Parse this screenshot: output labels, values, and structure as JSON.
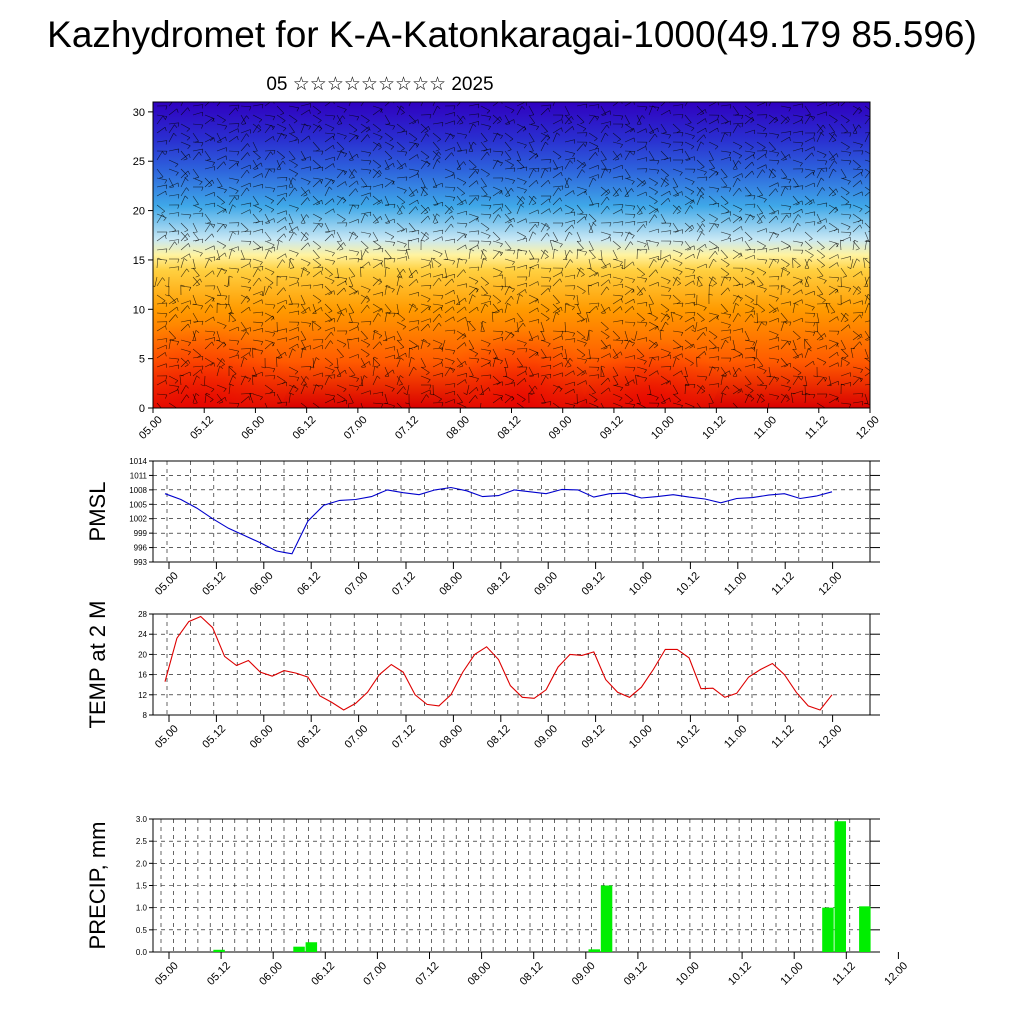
{
  "title": "Kazhydromet for K-A-Katonkaragai-1000(49.179 85.596)",
  "subtitle": "05 ☆☆☆☆☆☆☆☆☆ 2025",
  "time_labels": [
    "05.00",
    "05.12",
    "06.00",
    "06.12",
    "07.00",
    "07.12",
    "08.00",
    "08.12",
    "09.00",
    "09.12",
    "10.00",
    "10.12",
    "11.00",
    "11.12",
    "12.00"
  ],
  "chart_data": [
    {
      "type": "heatmap",
      "title": "",
      "x_categories": [
        "05.00",
        "05.12",
        "06.00",
        "06.12",
        "07.00",
        "07.12",
        "08.00",
        "08.12",
        "09.00",
        "09.12",
        "10.00",
        "10.12",
        "11.00",
        "11.12",
        "12.00"
      ],
      "y_ticks": [
        0,
        5,
        10,
        15,
        20,
        25,
        30
      ],
      "ylim": [
        0,
        31
      ],
      "colors": [
        "#e10000",
        "#ff6a00",
        "#ffb000",
        "#ffe870",
        "#a9dcf0",
        "#3aa6e8",
        "#2a4fd8",
        "#2a10c8"
      ],
      "overlay": "wind barbs"
    },
    {
      "type": "line",
      "ylabel": "PMSL",
      "y_ticks": [
        993,
        996,
        999,
        1002,
        1005,
        1008,
        1011,
        1014
      ],
      "ylim": [
        993,
        1014
      ],
      "color": "#0000cc",
      "x": [
        0,
        2,
        4,
        6,
        8,
        10,
        12,
        14,
        15,
        16,
        18,
        20,
        22,
        24,
        26,
        28,
        30,
        32,
        34,
        36,
        38,
        40,
        42,
        44,
        46,
        48,
        50,
        52,
        54,
        56,
        58,
        60,
        62,
        64,
        66,
        68,
        70,
        72,
        74,
        76,
        78,
        80,
        82,
        84
      ],
      "values": [
        1007.2,
        1006,
        1004.2,
        1002,
        1000,
        998.5,
        997,
        995.3,
        995,
        994.7,
        1001.5,
        1004.8,
        1005.8,
        1006,
        1006.6,
        1008,
        1007.4,
        1007,
        1008,
        1008.5,
        1007.8,
        1006.6,
        1006.8,
        1008,
        1007.6,
        1007.2,
        1008.1,
        1008,
        1006.5,
        1007.2,
        1007.3,
        1006.3,
        1006.6,
        1007,
        1006.5,
        1006.1,
        1005.3,
        1006.2,
        1006.4,
        1006.9,
        1007.2,
        1006.2,
        1006.7,
        1007.6
      ]
    },
    {
      "type": "line",
      "ylabel": "TEMP at 2 M",
      "y_ticks": [
        8,
        12,
        16,
        20,
        24,
        28
      ],
      "ylim": [
        8,
        28
      ],
      "color": "#dd0000",
      "x": [
        0,
        1.5,
        3,
        4.5,
        6,
        7.5,
        9,
        10.5,
        12,
        13.5,
        15,
        16.5,
        18,
        19.5,
        21,
        22.5,
        24,
        25.5,
        27,
        28.5,
        30,
        31.5,
        33,
        34.5,
        36,
        37.5,
        39,
        40.5,
        42,
        43.5,
        45,
        46.5,
        48,
        49.5,
        51,
        52.5,
        54,
        55.5,
        57,
        58.5,
        60,
        61.5,
        63,
        64.5,
        66,
        67.5,
        69,
        70.5,
        72,
        73.5,
        75,
        76.5,
        78,
        79.5,
        81,
        82.5,
        84
      ],
      "values": [
        14.6,
        23.2,
        26.5,
        27.5,
        25.3,
        19.6,
        17.8,
        18.8,
        16.5,
        15.7,
        16.8,
        16.3,
        15.5,
        11.8,
        10.5,
        9,
        10.3,
        12.5,
        16,
        18,
        16.5,
        12,
        10.1,
        9.8,
        12,
        16.5,
        20,
        21.5,
        19,
        13.8,
        11.5,
        11.3,
        13,
        17.5,
        20,
        19.8,
        20.5,
        15,
        12.5,
        11.5,
        13.5,
        17,
        21,
        21,
        19.3,
        13.2,
        13.3,
        11.5,
        12.3,
        15.5,
        17,
        18.2,
        16,
        12.5,
        9.8,
        9,
        12
      ]
    },
    {
      "type": "bar",
      "ylabel": "PRECIP, mm",
      "y_ticks": [
        0.0,
        0.5,
        1.0,
        1.5,
        2.0,
        2.5,
        3.0
      ],
      "ylim": [
        0,
        3.0
      ],
      "color": "#00ee00",
      "bars": [
        {
          "x": 9,
          "value": 0.05
        },
        {
          "x": 22,
          "value": 0.12
        },
        {
          "x": 24,
          "value": 0.22
        },
        {
          "x": 70,
          "value": 0.06
        },
        {
          "x": 72,
          "value": 1.5
        },
        {
          "x": 108,
          "value": 1.0
        },
        {
          "x": 110,
          "value": 2.95
        },
        {
          "x": 114,
          "value": 1.03
        }
      ]
    }
  ]
}
